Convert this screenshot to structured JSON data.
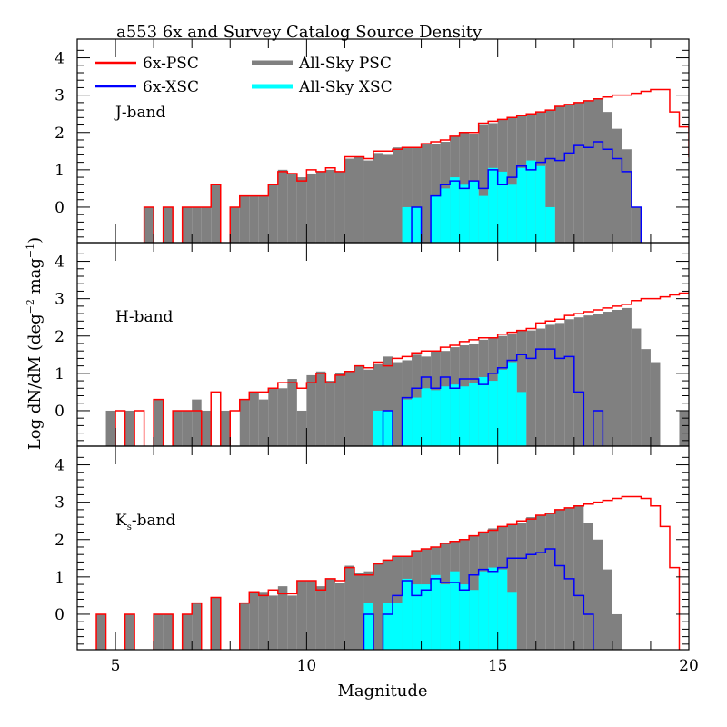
{
  "chart_data": {
    "type": "bar",
    "title": "a553  6x and Survey Catalog Source Density",
    "xlabel": "Magnitude",
    "ylabel": "Log dN/dM (deg^-2 mag^-1)",
    "ylabel_parts": {
      "main": "Log dN/dM (deg",
      "sup1": "−2",
      "mid": " mag",
      "sup2": "−1",
      "end": ")"
    },
    "xlim": [
      4,
      20
    ],
    "ylim": [
      -0.95,
      4.5
    ],
    "x_ticks": [
      5,
      10,
      15,
      20
    ],
    "y_ticks": [
      0,
      1,
      2,
      3,
      4
    ],
    "bin_width": 0.25,
    "legend": {
      "placement": "top-left",
      "entries": [
        {
          "name": "6x-PSC",
          "color": "#ff0000",
          "style": "line"
        },
        {
          "name": "6x-XSC",
          "color": "#0000ff",
          "style": "line"
        },
        {
          "name": "All-Sky PSC",
          "color": "#808080",
          "style": "fill"
        },
        {
          "name": "All-Sky XSC",
          "color": "#00ffff",
          "style": "fill"
        }
      ]
    },
    "panels": [
      {
        "label": "J-band",
        "label_sub": "",
        "allsky_psc": {
          "start": 5.75,
          "values": [
            0,
            null,
            0,
            null,
            0,
            0,
            0,
            0.6,
            null,
            0,
            0.3,
            0.3,
            0.3,
            0.6,
            1.0,
            0.9,
            0.8,
            0.9,
            0.95,
            1.0,
            0.95,
            1.3,
            1.35,
            1.25,
            1.45,
            1.4,
            1.6,
            1.6,
            1.6,
            1.7,
            1.7,
            1.75,
            1.9,
            2.0,
            1.95,
            2.2,
            2.25,
            2.35,
            2.4,
            2.45,
            2.5,
            2.55,
            2.6,
            2.7,
            2.75,
            2.8,
            2.85,
            2.9,
            2.55,
            2.1,
            1.55,
            0.0
          ]
        },
        "allsky_xsc": {
          "start": 12.5,
          "values": [
            0,
            0,
            null,
            0.3,
            0.5,
            0.8,
            0.6,
            0.7,
            0.3,
            1.05,
            0.95,
            0.6,
            1.05,
            1.25,
            1.1,
            0.0
          ]
        },
        "sixx_psc": {
          "start": 5.75,
          "values": [
            0,
            null,
            0,
            null,
            0,
            0,
            0,
            0.6,
            null,
            0,
            0.3,
            0.3,
            0.3,
            0.6,
            0.95,
            0.9,
            0.7,
            1.0,
            0.95,
            1.05,
            0.95,
            1.35,
            1.35,
            1.3,
            1.5,
            1.5,
            1.55,
            1.6,
            1.6,
            1.7,
            1.75,
            1.8,
            1.9,
            2.0,
            2.0,
            2.25,
            2.3,
            2.35,
            2.4,
            2.45,
            2.5,
            2.55,
            2.6,
            2.7,
            2.75,
            2.8,
            2.85,
            2.9,
            2.95,
            3.0,
            3.0,
            3.05,
            3.1,
            3.15,
            3.15,
            2.55,
            2.15,
            1.35,
            0.7
          ]
        },
        "sixx_xsc": {
          "start": 12.75,
          "values": [
            0,
            null,
            0.3,
            0.6,
            0.7,
            0.5,
            0.7,
            0.5,
            1.0,
            0.6,
            0.8,
            1.1,
            1.0,
            1.2,
            1.3,
            1.25,
            1.45,
            1.65,
            1.6,
            1.75,
            1.55,
            1.3,
            0.95,
            0.0
          ]
        }
      },
      {
        "label": "H-band",
        "label_sub": "",
        "allsky_psc": {
          "start": 4.75,
          "values": [
            0,
            null,
            0,
            null,
            null,
            0.3,
            null,
            0,
            0,
            0.3,
            0,
            null,
            0,
            null,
            0.3,
            0.5,
            0.3,
            0.6,
            0.6,
            0.85,
            0.0,
            0.95,
            1.05,
            0.8,
            1.0,
            1.05,
            1.2,
            1.1,
            1.25,
            1.45,
            1.3,
            1.35,
            1.5,
            1.45,
            1.6,
            1.6,
            1.7,
            1.75,
            1.8,
            1.9,
            1.95,
            2.0,
            2.05,
            2.15,
            2.15,
            2.2,
            2.3,
            2.35,
            2.45,
            2.5,
            2.55,
            2.6,
            2.65,
            2.7,
            2.75,
            2.2,
            1.65,
            1.3,
            null,
            null,
            0.0
          ]
        },
        "allsky_xsc": {
          "start": 11.75,
          "values": [
            0.0,
            0.0,
            null,
            0.3,
            0.35,
            0.6,
            0.55,
            0.65,
            0.7,
            0.65,
            0.75,
            0.9,
            0.8,
            1.1,
            1.3,
            0.5
          ]
        },
        "sixx_psc": {
          "start": 5.0,
          "values": [
            0,
            null,
            0,
            null,
            0.3,
            null,
            0,
            0,
            0,
            null,
            0.5,
            null,
            0,
            0.3,
            0.5,
            0.5,
            0.6,
            0.75,
            0.75,
            0.6,
            0.75,
            1.0,
            0.75,
            0.95,
            1.05,
            1.2,
            1.15,
            1.3,
            1.2,
            1.4,
            1.45,
            1.55,
            1.6,
            1.6,
            1.7,
            1.75,
            1.85,
            1.9,
            1.95,
            1.95,
            2.05,
            2.1,
            2.15,
            2.2,
            2.35,
            2.4,
            2.45,
            2.55,
            2.6,
            2.65,
            2.7,
            2.75,
            2.8,
            2.85,
            2.95,
            3.0,
            3.0,
            3.05,
            3.1,
            3.15,
            3.2,
            3.15,
            3.0,
            2.6,
            2.0,
            1.35
          ]
        },
        "sixx_xsc": {
          "start": 12.0,
          "values": [
            0,
            null,
            0.35,
            0.6,
            0.9,
            0.6,
            0.9,
            0.6,
            0.85,
            0.85,
            0.7,
            1.0,
            1.15,
            1.35,
            1.5,
            1.4,
            1.65,
            1.65,
            1.4,
            1.45,
            0.5,
            null,
            0.0
          ]
        }
      },
      {
        "label": "K",
        "label_sub": "s",
        "label_end": "-band",
        "allsky_psc": {
          "start": 4.5,
          "values": [
            0,
            null,
            null,
            0,
            null,
            null,
            0,
            0,
            null,
            0,
            0.3,
            null,
            0.45,
            null,
            null,
            0.3,
            0.6,
            0.6,
            0.5,
            0.75,
            0.5,
            0.9,
            0.9,
            0.75,
            0.95,
            0.85,
            1.3,
            1.1,
            1.15,
            1.35,
            1.45,
            1.55,
            1.55,
            1.7,
            1.75,
            1.8,
            1.9,
            1.95,
            2.0,
            2.1,
            2.2,
            2.3,
            2.35,
            2.4,
            2.45,
            2.6,
            2.65,
            2.7,
            2.8,
            2.85,
            2.9,
            2.45,
            2.0,
            1.2,
            0.0
          ]
        },
        "allsky_xsc": {
          "start": 11.5,
          "values": [
            0.3,
            null,
            0.3,
            0.3,
            0.95,
            0.8,
            0.8,
            1.05,
            0.8,
            1.15,
            0.8,
            0.65,
            1.15,
            1.25,
            1.2,
            0.6
          ]
        },
        "sixx_psc": {
          "start": 4.5,
          "values": [
            0,
            null,
            null,
            0,
            null,
            null,
            0,
            0,
            null,
            0,
            0.3,
            null,
            0.45,
            null,
            null,
            0.3,
            0.6,
            0.5,
            0.65,
            0.55,
            0.55,
            0.9,
            0.9,
            0.65,
            0.95,
            0.9,
            1.25,
            1.05,
            1.05,
            1.35,
            1.45,
            1.55,
            1.55,
            1.7,
            1.75,
            1.8,
            1.9,
            1.95,
            2.0,
            2.1,
            2.2,
            2.25,
            2.35,
            2.4,
            2.5,
            2.55,
            2.65,
            2.7,
            2.8,
            2.85,
            2.9,
            2.95,
            3.0,
            3.05,
            3.1,
            3.15,
            3.15,
            3.1,
            2.9,
            2.35,
            1.25
          ]
        },
        "sixx_xsc": {
          "start": 11.5,
          "values": [
            0,
            null,
            0,
            0.5,
            0.9,
            0.5,
            0.65,
            0.95,
            0.85,
            0.85,
            0.65,
            1.05,
            1.2,
            1.15,
            1.25,
            1.5,
            1.5,
            1.6,
            1.65,
            1.75,
            1.3,
            0.95,
            0.5,
            0.0
          ]
        }
      }
    ]
  }
}
